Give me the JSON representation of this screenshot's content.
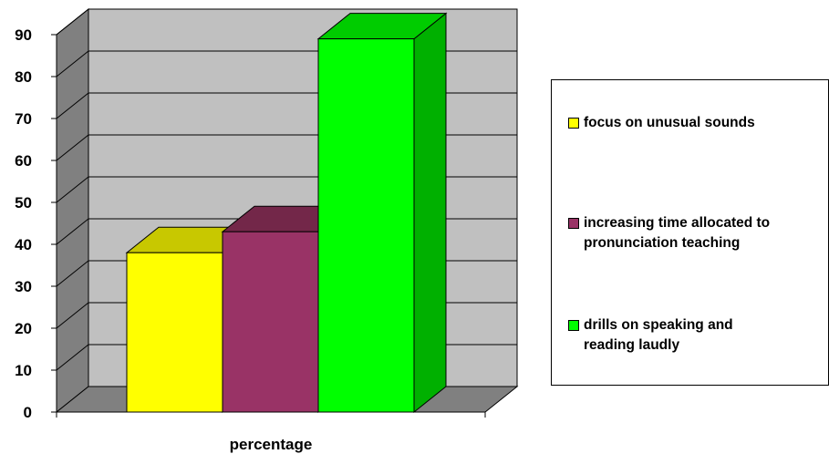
{
  "chart_data": {
    "type": "bar",
    "style": "3d-clustered-column",
    "categories": [
      "percentage"
    ],
    "xlabel": "percentage",
    "ylabel": "",
    "title": "",
    "ylim": [
      0,
      90
    ],
    "yticks": [
      0,
      10,
      20,
      30,
      40,
      50,
      60,
      70,
      80,
      90
    ],
    "grid": true,
    "legend_position": "right",
    "series": [
      {
        "name": "focus on unusual sounds",
        "values": [
          38
        ],
        "color": "#FFFF00",
        "top_color": "#C8C800",
        "side_color": "#B0B000"
      },
      {
        "name": "increasing time allocated to pronunciation teaching",
        "values": [
          43
        ],
        "color": "#993366",
        "top_color": "#732749",
        "side_color": "#602040"
      },
      {
        "name": "drills on speaking and reading laudly",
        "values": [
          89
        ],
        "color": "#00FF00",
        "top_color": "#00CC00",
        "side_color": "#00B000"
      }
    ]
  },
  "legend": {
    "items": [
      {
        "lines": [
          "focus on unusual sounds"
        ]
      },
      {
        "lines": [
          "increasing time allocated to",
          "pronunciation teaching"
        ]
      },
      {
        "lines": [
          "drills on speaking and",
          "reading laudly"
        ]
      }
    ]
  }
}
